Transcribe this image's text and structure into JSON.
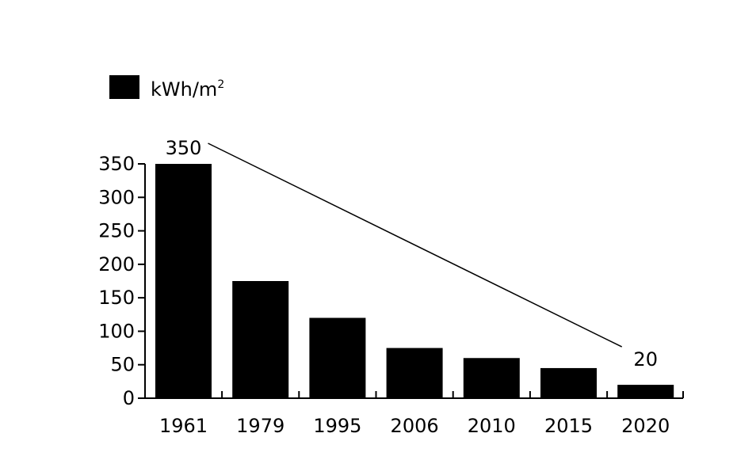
{
  "chart_data": {
    "type": "bar",
    "title": "",
    "xlabel": "",
    "ylabel": "",
    "categories": [
      "1961",
      "1979",
      "1995",
      "2006",
      "2010",
      "2015",
      "2020"
    ],
    "series": [
      {
        "name": "kWh/m2",
        "values": [
          350,
          175,
          120,
          75,
          60,
          45,
          20
        ]
      }
    ],
    "ylim": [
      0,
      350
    ],
    "yticks": [
      0,
      50,
      100,
      150,
      200,
      250,
      300,
      350
    ],
    "grid": false,
    "legend": {
      "position": "top-left",
      "label_base": "kWh/m",
      "label_sup": "2"
    },
    "annotations": [
      {
        "text": "350",
        "category": "1961",
        "value": 350
      },
      {
        "text": "20",
        "category": "2020",
        "value": 20
      }
    ],
    "trend_line": {
      "from": "1961",
      "to": "2020"
    },
    "colors": {
      "bar": "#000000",
      "axis": "#000000",
      "background": "#ffffff"
    }
  }
}
